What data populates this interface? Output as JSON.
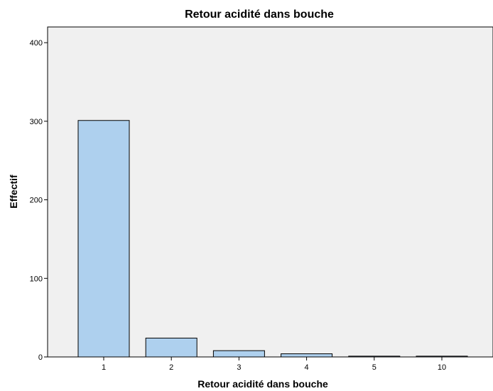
{
  "chart_data": {
    "type": "bar",
    "title": "Retour acidité dans bouche",
    "xlabel": "Retour acidité dans bouche",
    "ylabel": "Effectif",
    "categories": [
      "1",
      "2",
      "3",
      "4",
      "5",
      "10"
    ],
    "values": [
      301,
      24,
      8,
      4,
      1,
      1
    ],
    "ylim": [
      0,
      420
    ],
    "yticks": [
      0,
      100,
      200,
      300,
      400
    ],
    "grid": false,
    "legend": "none",
    "colors": {
      "bar_fill": "#aed0ee",
      "bar_stroke": "#000000",
      "plot_background": "#f0f0f0",
      "axis": "#000000"
    }
  }
}
